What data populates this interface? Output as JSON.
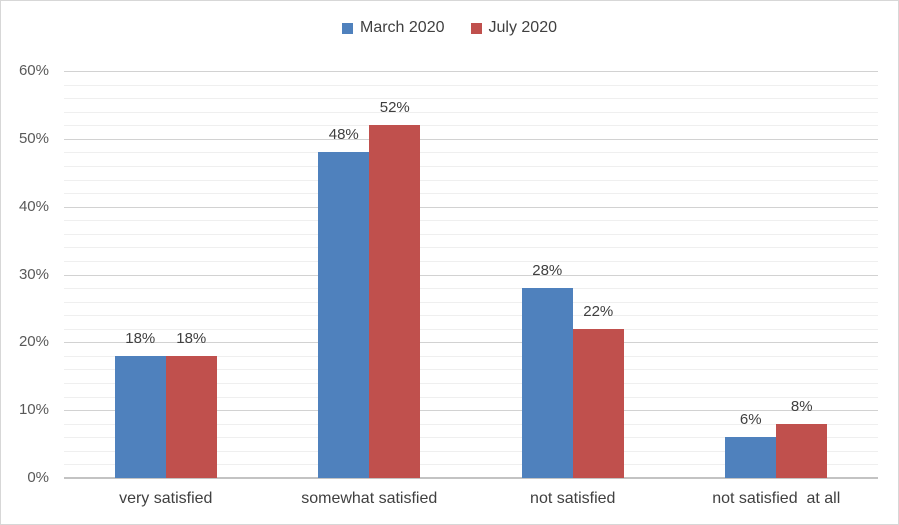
{
  "chart_data": {
    "type": "bar",
    "categories": [
      "very satisfied",
      "somewhat satisfied",
      "not satisfied",
      "not satisfied  at all"
    ],
    "series": [
      {
        "name": "March 2020",
        "color": "#4F81BD",
        "values": [
          18,
          48,
          28,
          6
        ]
      },
      {
        "name": "July 2020",
        "color": "#C0504D",
        "values": [
          18,
          52,
          22,
          8
        ]
      }
    ],
    "title": "",
    "xlabel": "",
    "ylabel": "",
    "ylim": [
      0,
      60
    ],
    "y_major_ticks": [
      0,
      10,
      20,
      30,
      40,
      50,
      60
    ],
    "y_minor_step": 2,
    "y_tick_suffix": "%",
    "data_label_suffix": "%",
    "grid": true,
    "legend_position": "top"
  },
  "legend": {
    "items": [
      {
        "label": "March 2020",
        "color": "#4F81BD"
      },
      {
        "label": "July 2020",
        "color": "#C0504D"
      }
    ]
  },
  "colors": {
    "series_blue": "#4F81BD",
    "series_red": "#C0504D",
    "axis_text": "#595959",
    "label_text": "#404040",
    "grid_major": "#D2D2D2",
    "grid_minor": "#EFEFEF",
    "border": "#D7D7D7"
  }
}
